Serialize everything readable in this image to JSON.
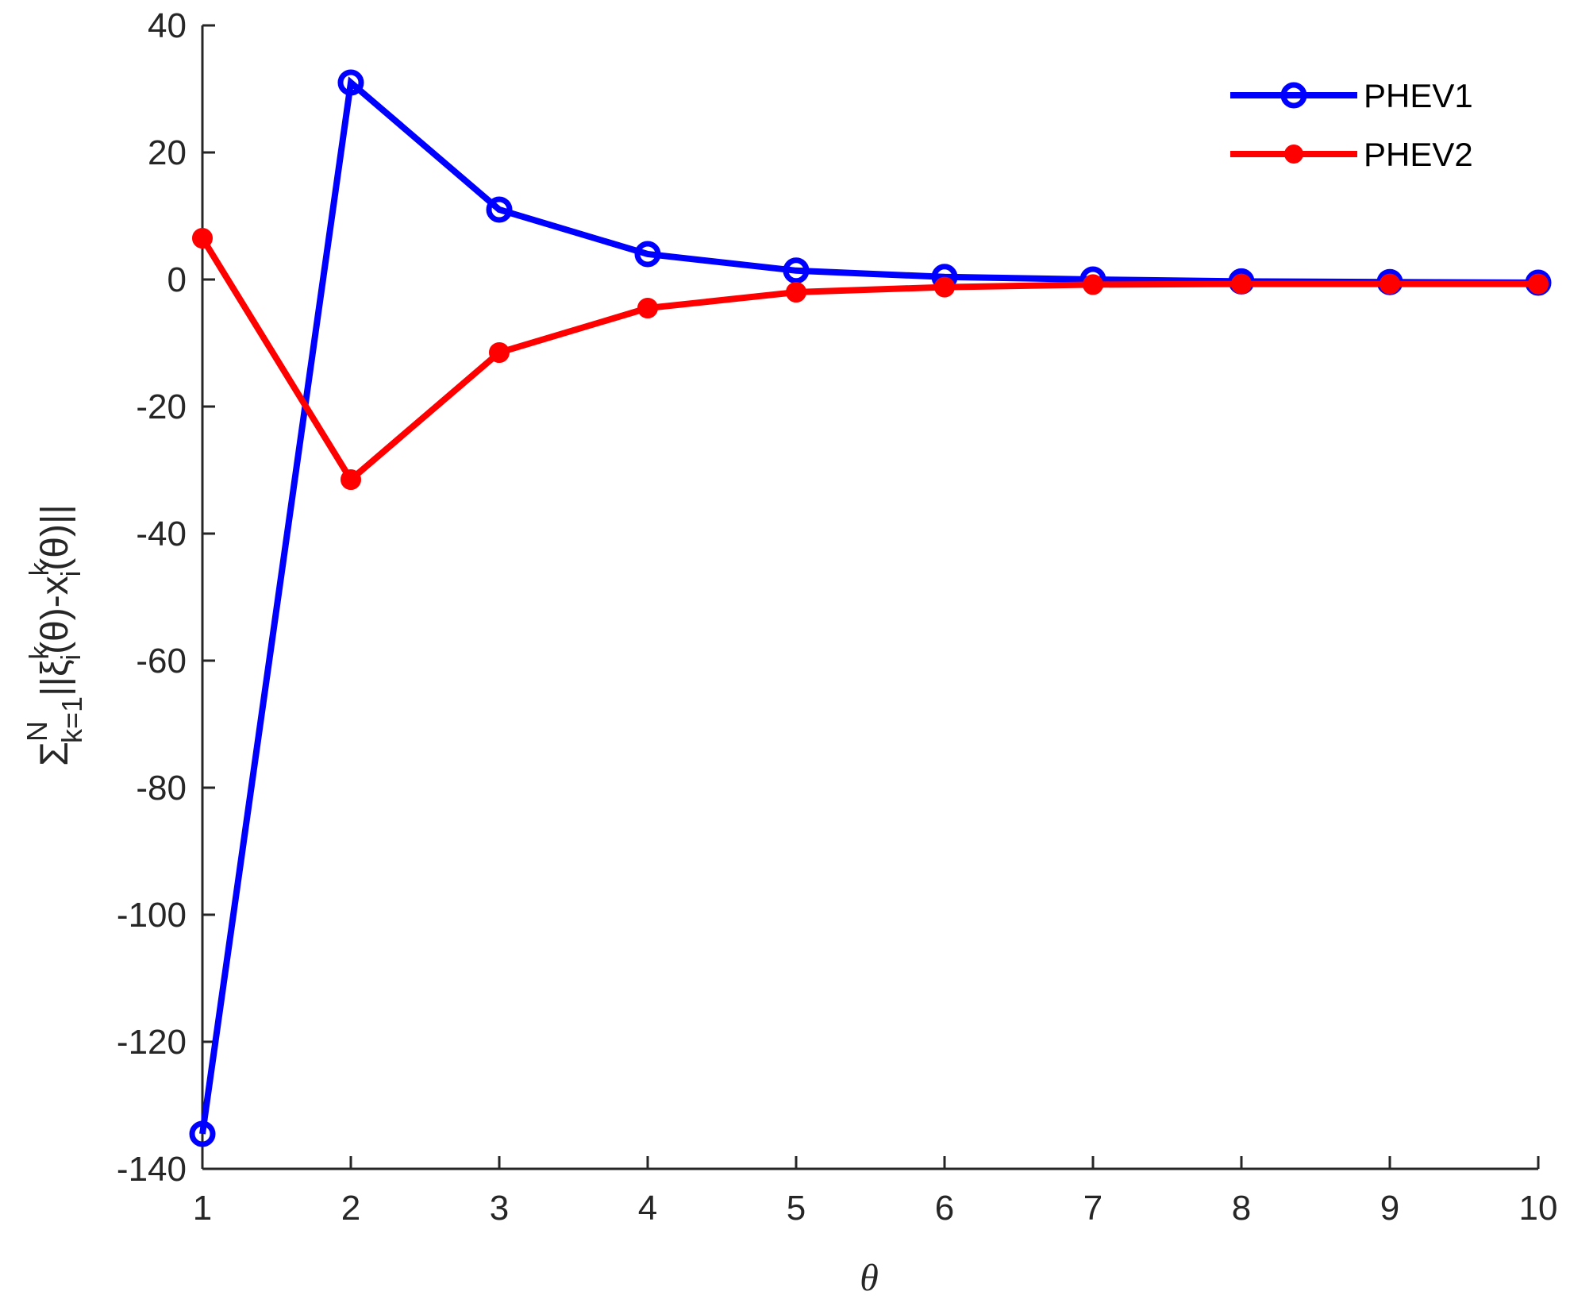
{
  "chart_data": {
    "type": "line",
    "xlabel": "θ",
    "ylabel": {
      "sigma": "Σ",
      "sup": "N",
      "sub": "k=1",
      "body": "||ξ",
      "xi_sup": "k",
      "xi_sub": "i",
      "mid": "(θ)-x",
      "x_sup": "k",
      "x_sub": "i",
      "end": "(θ)||"
    },
    "xlim": [
      1,
      10
    ],
    "ylim": [
      -140,
      40
    ],
    "xticks": [
      1,
      2,
      3,
      4,
      5,
      6,
      7,
      8,
      9,
      10
    ],
    "yticks": [
      40,
      20,
      0,
      -20,
      -40,
      -60,
      -80,
      -100,
      -120,
      -140
    ],
    "x": [
      1,
      2,
      3,
      4,
      5,
      6,
      7,
      8,
      9,
      10
    ],
    "series": [
      {
        "name": "PHEV1",
        "color": "#0000ff",
        "marker": "open-circle",
        "values": [
          -134.5,
          31.0,
          11.0,
          4.0,
          1.4,
          0.4,
          0.0,
          -0.3,
          -0.4,
          -0.5
        ]
      },
      {
        "name": "PHEV2",
        "color": "#ff0000",
        "marker": "filled-dot",
        "values": [
          6.5,
          -31.5,
          -11.5,
          -4.5,
          -2.0,
          -1.2,
          -0.8,
          -0.7,
          -0.7,
          -0.7
        ]
      }
    ],
    "legend": "top-right",
    "grid": false
  }
}
